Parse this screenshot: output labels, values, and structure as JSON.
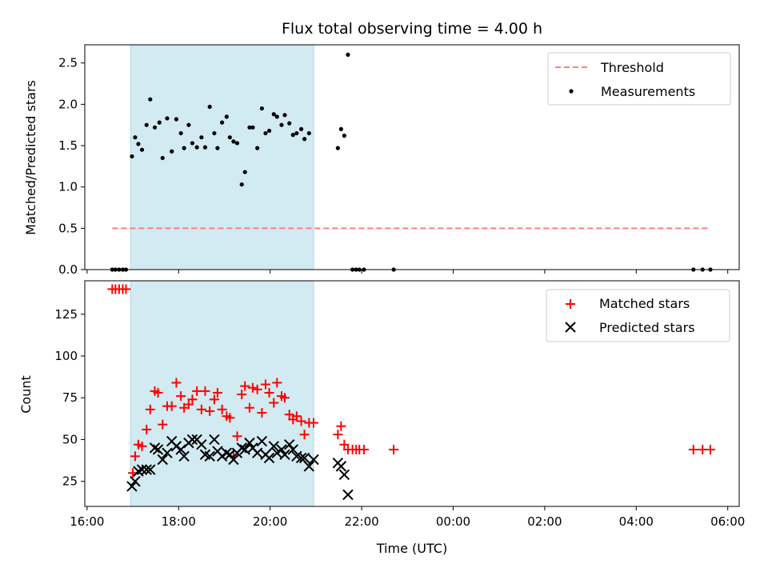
{
  "chart_data": {
    "type": "scatter",
    "title": "Flux total observing time = 4.00 h",
    "x_unit": "hours since 16:00 UTC",
    "xlim": [
      -0.05,
      14.25
    ],
    "x_ticks": [
      {
        "pos": 0,
        "label": "16:00"
      },
      {
        "pos": 2,
        "label": "18:00"
      },
      {
        "pos": 4,
        "label": "20:00"
      },
      {
        "pos": 6,
        "label": "22:00"
      },
      {
        "pos": 8,
        "label": "00:00"
      },
      {
        "pos": 10,
        "label": "02:00"
      },
      {
        "pos": 12,
        "label": "04:00"
      },
      {
        "pos": 14,
        "label": "06:00"
      }
    ],
    "xlabel": "Time (UTC)",
    "shaded_interval": {
      "start": 0.95,
      "end": 4.95,
      "color": "#add8e6"
    },
    "top": {
      "ylabel": "Matched/Predicted stars",
      "ylim": [
        0,
        2.72
      ],
      "y_ticks": [
        0.0,
        0.5,
        1.0,
        1.5,
        2.0,
        2.5
      ],
      "y_tick_labels": [
        "0.0",
        "0.5",
        "1.0",
        "1.5",
        "2.0",
        "2.5"
      ],
      "legend": {
        "threshold": "Threshold",
        "measurements": "Measurements"
      },
      "threshold": {
        "value": 0.5,
        "x_start": 0.55,
        "x_end": 13.6,
        "color": "#ff7f7f"
      },
      "measurements": {
        "x": [
          0.55,
          0.62,
          0.7,
          0.78,
          0.85,
          0.98,
          1.05,
          1.12,
          1.2,
          1.3,
          1.38,
          1.48,
          1.58,
          1.65,
          1.75,
          1.85,
          1.95,
          2.05,
          2.12,
          2.22,
          2.3,
          2.4,
          2.5,
          2.58,
          2.68,
          2.78,
          2.85,
          2.95,
          3.05,
          3.12,
          3.2,
          3.28,
          3.38,
          3.45,
          3.55,
          3.62,
          3.72,
          3.82,
          3.9,
          3.98,
          4.08,
          4.15,
          4.25,
          4.32,
          4.42,
          4.5,
          4.58,
          4.68,
          4.75,
          4.85,
          5.48,
          5.55,
          5.62,
          5.7,
          5.8,
          5.88,
          5.95,
          6.05,
          6.7,
          13.25,
          13.45,
          13.62
        ],
        "y": [
          0,
          0,
          0,
          0,
          0,
          1.37,
          1.6,
          1.52,
          1.45,
          1.75,
          2.06,
          1.72,
          1.78,
          1.35,
          1.83,
          1.43,
          1.82,
          1.65,
          1.47,
          1.75,
          1.53,
          1.48,
          1.6,
          1.48,
          1.97,
          1.65,
          1.47,
          1.78,
          1.85,
          1.6,
          1.55,
          1.53,
          1.03,
          1.18,
          1.72,
          1.72,
          1.47,
          1.95,
          1.65,
          1.68,
          1.88,
          1.85,
          1.75,
          1.87,
          1.77,
          1.63,
          1.65,
          1.7,
          1.58,
          1.65,
          1.47,
          1.7,
          1.62,
          2.6,
          0,
          0,
          0,
          0,
          0,
          0,
          0,
          0
        ]
      }
    },
    "bottom": {
      "ylabel": "Count",
      "ylim": [
        10,
        145
      ],
      "y_ticks": [
        25,
        50,
        75,
        100,
        125
      ],
      "y_tick_labels": [
        "25",
        "50",
        "75",
        "100",
        "125"
      ],
      "legend": {
        "matched": "Matched stars",
        "predicted": "Predicted stars"
      },
      "series": [
        {
          "name": "Matched stars",
          "color": "#ff0000",
          "marker": "plus",
          "x": [
            0.55,
            0.62,
            0.7,
            0.78,
            0.85,
            1.0,
            1.05,
            1.12,
            1.2,
            1.3,
            1.38,
            1.48,
            1.55,
            1.65,
            1.75,
            1.85,
            1.95,
            2.05,
            2.12,
            2.22,
            2.3,
            2.4,
            2.5,
            2.58,
            2.68,
            2.78,
            2.85,
            2.95,
            3.05,
            3.12,
            3.2,
            3.28,
            3.38,
            3.45,
            3.55,
            3.62,
            3.72,
            3.82,
            3.9,
            3.98,
            4.08,
            4.15,
            4.25,
            4.32,
            4.42,
            4.5,
            4.58,
            4.68,
            4.75,
            4.85,
            4.95,
            5.48,
            5.55,
            5.62,
            5.7,
            5.8,
            5.88,
            5.95,
            6.05,
            6.7,
            13.25,
            13.45,
            13.62
          ],
          "y": [
            140,
            140,
            140,
            140,
            140,
            30,
            40,
            47,
            46,
            56,
            68,
            79,
            78,
            59,
            70,
            70,
            84,
            76,
            69,
            71,
            74,
            79,
            68,
            79,
            67,
            74,
            78,
            68,
            64,
            63,
            40,
            52,
            77,
            82,
            69,
            81,
            80,
            66,
            83,
            78,
            72,
            84,
            76,
            75,
            65,
            62,
            64,
            61,
            53,
            60,
            60,
            53,
            58,
            47,
            44,
            44,
            44,
            44,
            44,
            44,
            44,
            44,
            44
          ]
        },
        {
          "name": "Predicted stars",
          "color": "#000000",
          "marker": "x",
          "x": [
            0.98,
            1.05,
            1.12,
            1.2,
            1.3,
            1.38,
            1.48,
            1.55,
            1.65,
            1.75,
            1.85,
            1.95,
            2.05,
            2.12,
            2.22,
            2.3,
            2.4,
            2.5,
            2.58,
            2.68,
            2.78,
            2.85,
            2.95,
            3.05,
            3.12,
            3.2,
            3.28,
            3.38,
            3.45,
            3.55,
            3.62,
            3.72,
            3.82,
            3.9,
            3.98,
            4.08,
            4.15,
            4.25,
            4.32,
            4.42,
            4.5,
            4.58,
            4.68,
            4.75,
            4.85,
            4.95,
            5.48,
            5.55,
            5.62,
            5.7
          ],
          "y": [
            22,
            25,
            31,
            32,
            32,
            32,
            45,
            44,
            38,
            42,
            49,
            46,
            44,
            40,
            48,
            50,
            50,
            47,
            41,
            40,
            50,
            43,
            40,
            42,
            41,
            38,
            42,
            45,
            44,
            48,
            45,
            42,
            49,
            41,
            39,
            46,
            42,
            44,
            41,
            47,
            44,
            40,
            39,
            39,
            34,
            38,
            36,
            34,
            29,
            17
          ]
        }
      ]
    }
  }
}
